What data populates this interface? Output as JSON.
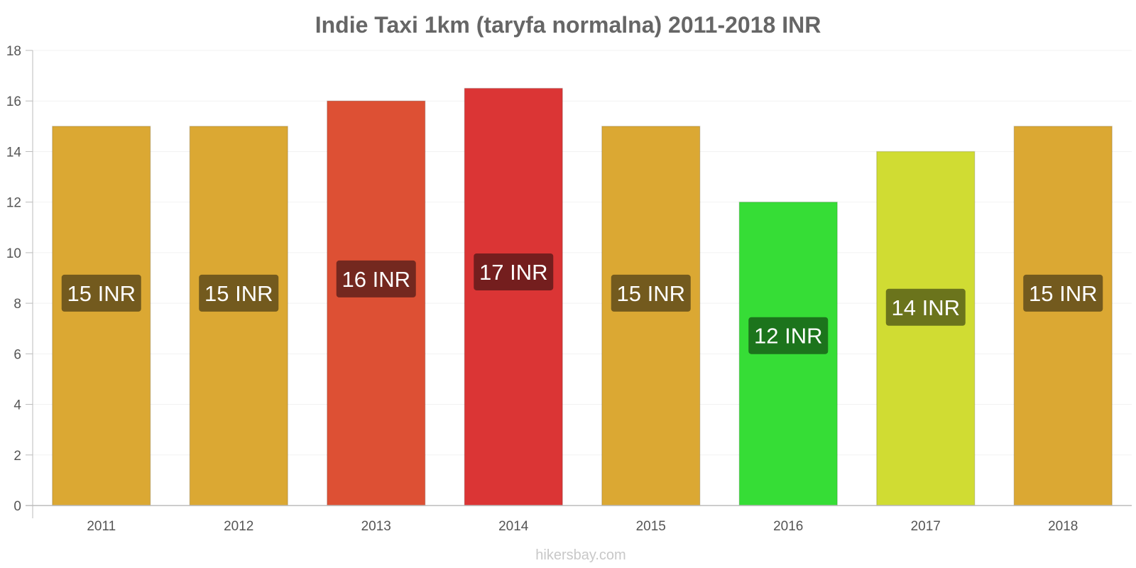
{
  "chart_data": {
    "type": "bar",
    "title": "Indie Taxi 1km (taryfa normalna) 2011-2018 INR",
    "categories": [
      "2011",
      "2012",
      "2013",
      "2014",
      "2015",
      "2016",
      "2017",
      "2018"
    ],
    "values": [
      15,
      15,
      16,
      16.5,
      15,
      12,
      14,
      15
    ],
    "data_labels": [
      "15 INR",
      "15 INR",
      "16 INR",
      "17 INR",
      "15 INR",
      "12 INR",
      "14 INR",
      "15 INR"
    ],
    "bar_colors": [
      "#dba833",
      "#dba833",
      "#dd5034",
      "#db3535",
      "#dba833",
      "#36dd36",
      "#d0dc33",
      "#dba833"
    ],
    "label_bg_colors": [
      "#735a1e",
      "#735a1e",
      "#74281f",
      "#741e1e",
      "#735a1e",
      "#1c741c",
      "#6b741c",
      "#735a1e"
    ],
    "xlabel": "",
    "ylabel": "",
    "ylim": [
      0,
      18
    ],
    "yticks": [
      "0",
      "2",
      "4",
      "6",
      "8",
      "10",
      "12",
      "14",
      "16",
      "18"
    ],
    "grid": true,
    "legend": "none"
  },
  "footer": {
    "credit": "hikersbay.com"
  }
}
